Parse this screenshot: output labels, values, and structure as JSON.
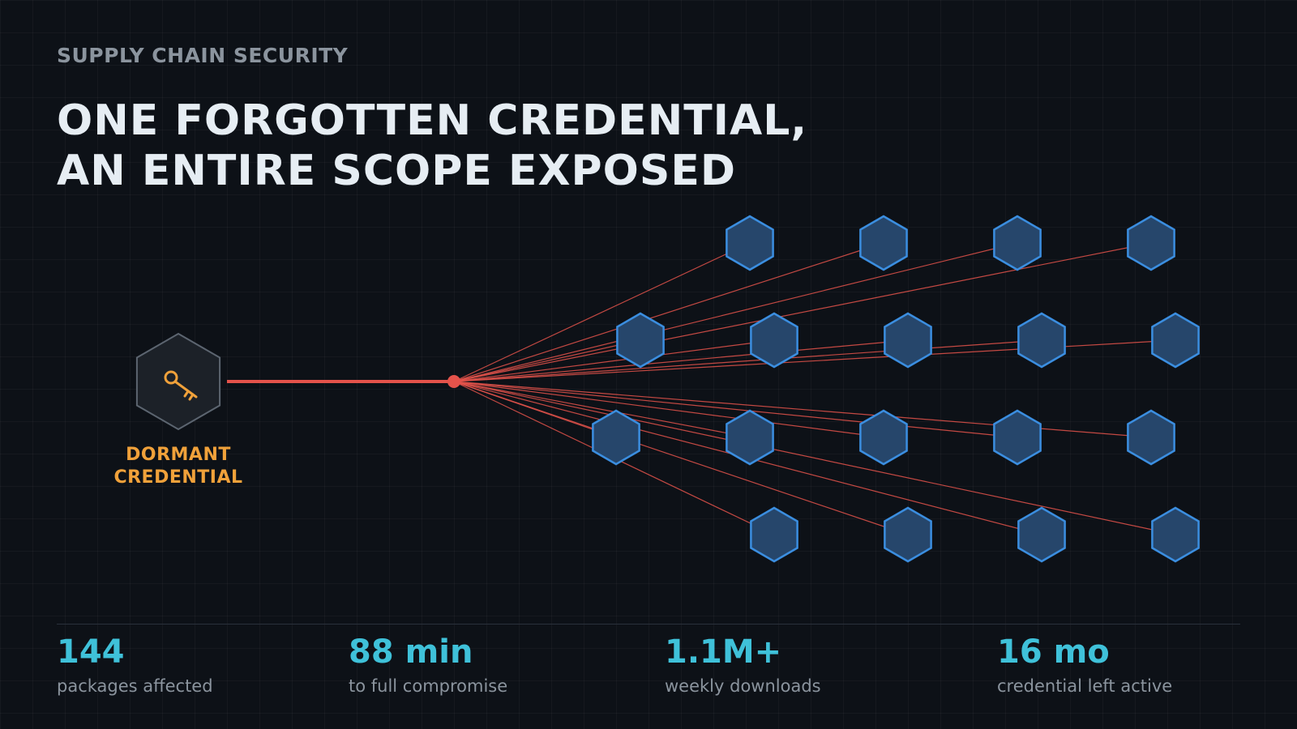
{
  "eyebrow": "SUPPLY CHAIN SECURITY",
  "headline": {
    "line1": "ONE FORGOTTEN CREDENTIAL,",
    "line2": "AN ENTIRE SCOPE EXPOSED"
  },
  "source_node": {
    "label_line1": "DORMANT",
    "label_line2": "CREDENTIAL",
    "icon": "key-icon"
  },
  "package_node_count": 18,
  "colors": {
    "background": "#0d1117",
    "link": "#e5534b",
    "package_fill": "#26466b",
    "package_stroke": "#3b8ee0",
    "source_fill": "#1c2128",
    "source_stroke": "#5c6570",
    "key": "#f0a13a",
    "stat_value": "#3fc1d9",
    "muted_text": "#8b949e"
  },
  "stats": [
    {
      "value": "144",
      "label": "packages affected"
    },
    {
      "value": "88 min",
      "label": "to full compromise"
    },
    {
      "value": "1.1M+",
      "label": "weekly downloads"
    },
    {
      "value": "16 mo",
      "label": "credential left active"
    }
  ]
}
